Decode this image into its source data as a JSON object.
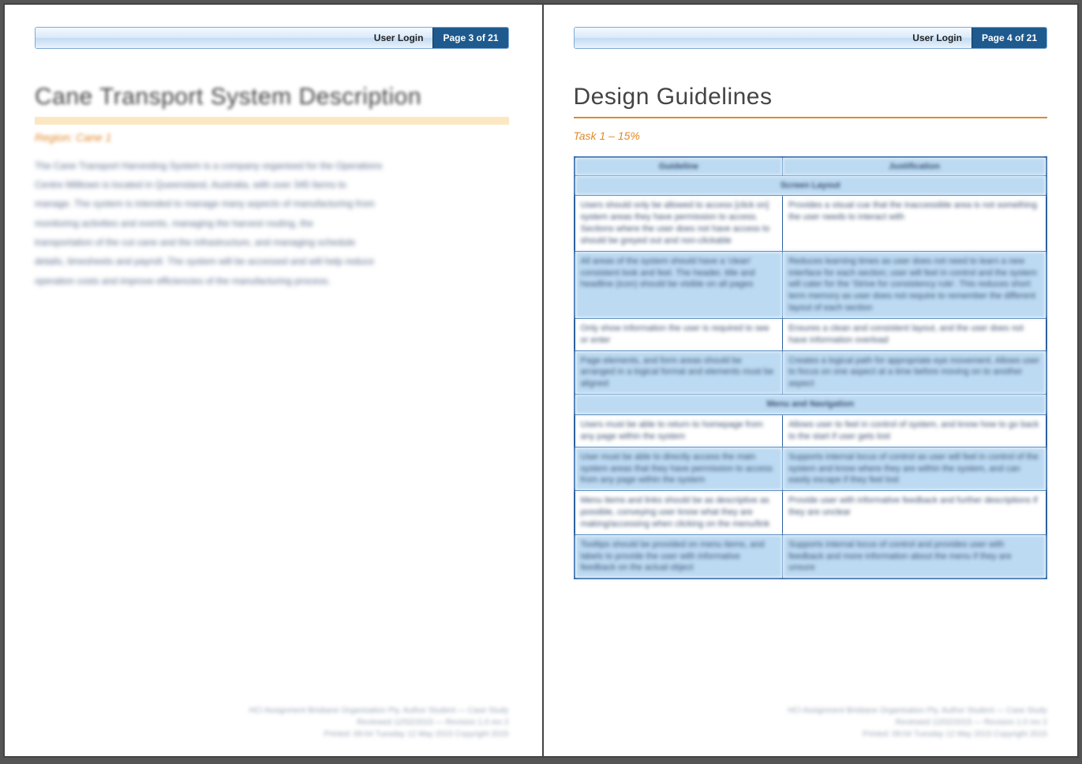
{
  "pages": {
    "left": {
      "topbar_label": "User Login",
      "page_badge": "Page 3 of 21",
      "title": "Cane Transport System Description",
      "subhead": "Region: Cane 1",
      "body_lines": [
        "The Cane Transport Harvesting System is a company organised for the Operations",
        "Centre Milltown is located in Queensland, Australia, with over 345 farms to",
        "manage. The system is intended to manage many aspects of manufacturing from",
        "monitoring activities and events, managing the harvest routing, the",
        "transportation of the cut cane and the infrastructure, and managing schedule",
        "details, timesheets and payroll. The system will be accessed and will help reduce",
        "operation costs and improve efficiencies of the manufacturing process."
      ],
      "footer_lines": [
        "HCI Assignment Brisbane Organisation Pty. Author Student — Case Study",
        "Reviewed 12/02/2015 — Revision 1.0 rev 2",
        "Printed: 09:04 Tuesday 12 May 2015 Copyright 2015"
      ]
    },
    "right": {
      "topbar_label": "User Login",
      "page_badge": "Page 4 of 21",
      "title": "Design Guidelines",
      "subhead": "Task 1 – 15%",
      "table": {
        "columns": [
          "Guideline",
          "Justification"
        ],
        "sections": [
          {
            "header": "Screen Layout",
            "rows": [
              {
                "alt": false,
                "c0": "Users should only be allowed to access [click on] system areas they have permission to access. Sections where the user does not have access to should be greyed out and non-clickable",
                "c1": "Provides a visual cue that the inaccessible area is not something the user needs to interact with"
              },
              {
                "alt": true,
                "c0": "All areas of the system should have a 'clean' consistent look and feel. The header, title and headline (icon) should be visible on all pages",
                "c1": "Reduces learning times as user does not need to learn a new interface for each section; user will feel in control and the system will cater for the 'Strive for consistency rule'. This reduces short term memory as user does not require to remember the different layout of each section"
              },
              {
                "alt": false,
                "c0": "Only show information the user is required to see or enter",
                "c1": "Ensures a clean and consistent layout, and the user does not have information overload"
              },
              {
                "alt": true,
                "c0": "Page elements, and form areas should be arranged in a logical format and elements must be aligned",
                "c1": "Creates a logical path for appropriate eye movement. Allows user to focus on one aspect at a time before moving on to another aspect"
              }
            ]
          },
          {
            "header": "Menu and Navigation",
            "rows": [
              {
                "alt": false,
                "c0": "Users must be able to return to homepage from any page within the system",
                "c1": "Allows user to feel in control of system, and know how to go back to the start if user gets lost"
              },
              {
                "alt": true,
                "c0": "User must be able to directly access the main system areas that they have permission to access from any page within the system",
                "c1": "Supports internal locus of control as user will feel in control of the system and know where they are within the system, and can easily escape if they feel lost"
              },
              {
                "alt": false,
                "c0": "Menu items and links should be as descriptive as possible, conveying user know what they are making/accessing when clicking on the menu/link",
                "c1": "Provide user with informative feedback and further descriptions if they are unclear"
              },
              {
                "alt": true,
                "c0": "Tooltips should be provided on menu items, and labels to provide the user with informative feedback on the actual object",
                "c1": "Supports internal locus of control and provides user with feedback and more information about the menu if they are unsure"
              }
            ]
          }
        ]
      },
      "footer_lines": [
        "HCI Assignment Brisbane Organisation Pty. Author Student — Case Study",
        "Reviewed 12/02/2015 — Revision 1.0 rev 2",
        "Printed: 09:04 Tuesday 12 May 2015 Copyright 2015"
      ]
    }
  }
}
